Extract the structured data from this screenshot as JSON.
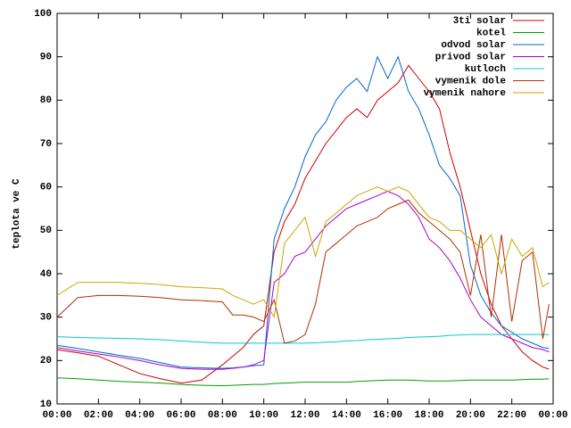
{
  "chart_data": {
    "type": "line",
    "y_label": "teplota ve C",
    "x": [
      0,
      1,
      2,
      3,
      4,
      5,
      6,
      7,
      8,
      8.5,
      9,
      9.5,
      10,
      10.5,
      11,
      11.5,
      12,
      12.5,
      13,
      13.5,
      14,
      14.5,
      15,
      15.5,
      16,
      16.5,
      17,
      17.5,
      18,
      18.5,
      19,
      19.5,
      20,
      20.5,
      21,
      21.5,
      22,
      22.5,
      23,
      23.5,
      23.8
    ],
    "xlim": [
      0,
      24
    ],
    "xticks": [
      {
        "value": 0,
        "label": "00:00"
      },
      {
        "value": 2,
        "label": "02:00"
      },
      {
        "value": 4,
        "label": "04:00"
      },
      {
        "value": 6,
        "label": "06:00"
      },
      {
        "value": 8,
        "label": "08:00"
      },
      {
        "value": 10,
        "label": "10:00"
      },
      {
        "value": 12,
        "label": "12:00"
      },
      {
        "value": 14,
        "label": "14:00"
      },
      {
        "value": 16,
        "label": "16:00"
      },
      {
        "value": 18,
        "label": "18:00"
      },
      {
        "value": 20,
        "label": "20:00"
      },
      {
        "value": 22,
        "label": "22:00"
      },
      {
        "value": 24,
        "label": "00:00"
      }
    ],
    "ylim": [
      10,
      100
    ],
    "yticks": [
      10,
      20,
      30,
      40,
      50,
      60,
      70,
      80,
      90,
      100
    ],
    "legend": "top-right",
    "series": [
      {
        "name": "3ti solar",
        "color": "#cc0000",
        "values": [
          22.5,
          21.8,
          21,
          19,
          17,
          15.8,
          14.8,
          15.5,
          19,
          21,
          23,
          26,
          28,
          45,
          52,
          56,
          62,
          66,
          70,
          73,
          76,
          78,
          76,
          80,
          82,
          84,
          88,
          85,
          82,
          78,
          68,
          60,
          50,
          40,
          33,
          28,
          25,
          22,
          20,
          18.5,
          18
        ]
      },
      {
        "name": "kotel",
        "color": "#00a000",
        "values": [
          16,
          15.8,
          15.5,
          15.2,
          15,
          14.8,
          14.5,
          14.3,
          14.2,
          14.3,
          14.4,
          14.5,
          14.5,
          14.7,
          14.8,
          14.9,
          15,
          15,
          15,
          15,
          15,
          15.2,
          15.3,
          15.4,
          15.5,
          15.5,
          15.5,
          15.4,
          15.3,
          15.3,
          15.3,
          15.4,
          15.5,
          15.5,
          15.5,
          15.5,
          15.5,
          15.6,
          15.7,
          15.7,
          15.8
        ]
      },
      {
        "name": "odvod solar",
        "color": "#0066cc",
        "values": [
          23.5,
          22.8,
          22,
          21.2,
          20.5,
          19.5,
          18.5,
          18.3,
          18.2,
          18.3,
          18.5,
          18.8,
          19,
          48,
          55,
          60,
          67,
          72,
          75,
          80,
          83,
          85,
          82,
          90,
          85,
          90,
          82,
          78,
          72,
          65,
          62,
          58,
          42,
          35,
          31,
          28,
          26.5,
          25,
          24,
          23,
          22.8
        ]
      },
      {
        "name": "privod solar",
        "color": "#aa00cc",
        "values": [
          23,
          22.2,
          21.5,
          20.8,
          20,
          19,
          18.2,
          18,
          18,
          18.2,
          18.5,
          19,
          20,
          38,
          40,
          44,
          45,
          48,
          51,
          53,
          55,
          56,
          57,
          58,
          59,
          58,
          56,
          53,
          48,
          46,
          43,
          39,
          34,
          30,
          28,
          26,
          25,
          24,
          23,
          22.5,
          22
        ]
      },
      {
        "name": "kutloch",
        "color": "#00cccc",
        "values": [
          25.5,
          25.3,
          25.2,
          25.1,
          25,
          24.8,
          24.5,
          24.2,
          24,
          24,
          24,
          24,
          24,
          24,
          24,
          24,
          24,
          24.1,
          24.2,
          24.3,
          24.5,
          24.6,
          24.8,
          24.9,
          25,
          25.1,
          25.3,
          25.4,
          25.5,
          25.6,
          25.8,
          25.9,
          26,
          26,
          26,
          26,
          26,
          26,
          26,
          26,
          26
        ]
      },
      {
        "name": "vymenik dole",
        "color": "#b03000",
        "values": [
          30,
          34.5,
          35,
          35,
          34.8,
          34.5,
          34,
          33.8,
          33.5,
          30.5,
          30.5,
          30,
          29,
          34,
          24,
          24.5,
          26,
          33,
          45,
          47,
          49,
          51,
          52,
          53,
          55,
          56,
          57,
          54,
          52,
          50,
          48,
          45,
          35,
          49,
          30,
          49,
          29,
          43,
          45,
          25,
          33
        ]
      },
      {
        "name": "vymenik nahore",
        "color": "#c8a800",
        "values": [
          35,
          38,
          38,
          38,
          37.8,
          37.5,
          37,
          36.8,
          36.5,
          35,
          34,
          33,
          34,
          30,
          47,
          50,
          53,
          44,
          52,
          54,
          56,
          58,
          59,
          60,
          59,
          60,
          59,
          56,
          53,
          52,
          50,
          50,
          48,
          46,
          49,
          40,
          48,
          44,
          46,
          37,
          38
        ]
      }
    ]
  }
}
